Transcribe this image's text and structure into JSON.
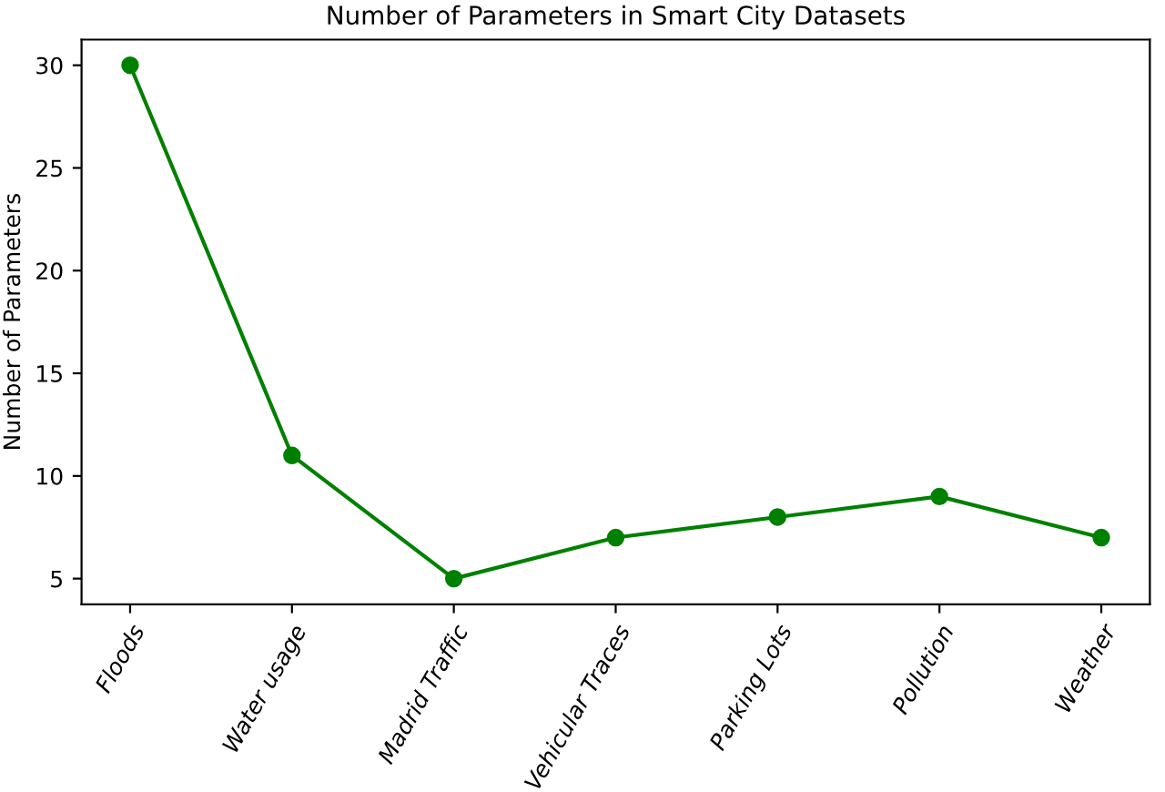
{
  "chart_data": {
    "type": "line",
    "title": "Number of Parameters in Smart City Datasets",
    "ylabel": "Number of Parameters",
    "categories": [
      "Floods",
      "Water usage",
      "Madrid Traffic",
      "Vehicular Traces",
      "Parking Lots",
      "Pollution",
      "Weather"
    ],
    "series": [
      {
        "color": "#008000",
        "values": [
          30,
          11,
          5,
          7,
          8,
          9,
          7
        ]
      }
    ],
    "ylim": [
      3.75,
      31.25
    ],
    "yticks": [
      5,
      10,
      15,
      20,
      25,
      30
    ],
    "marker": "circle",
    "line_style": "solid",
    "grid": false,
    "legend": false
  }
}
